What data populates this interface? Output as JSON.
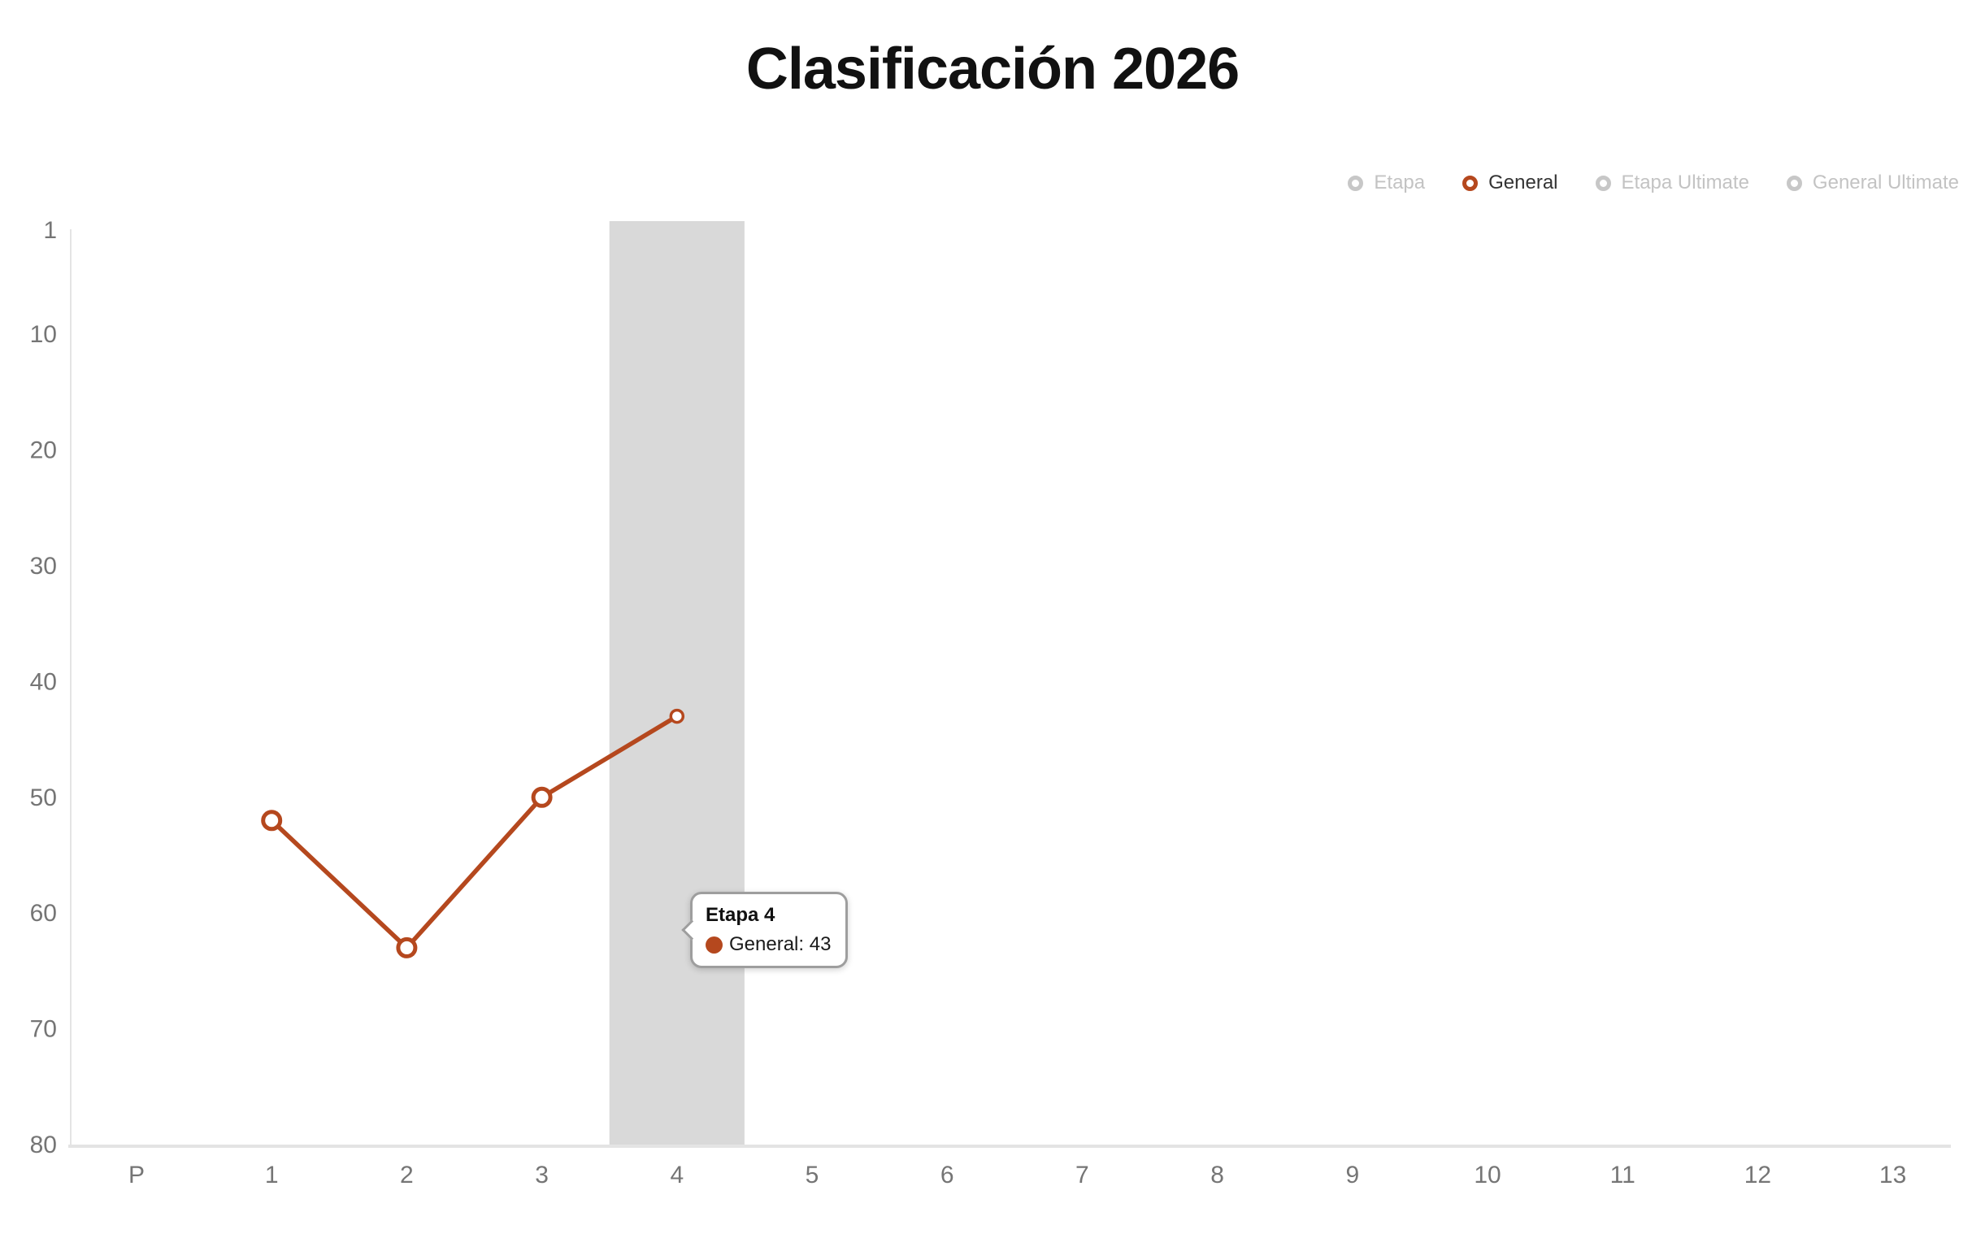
{
  "chart": {
    "title": "Clasificación 2026"
  },
  "legend": {
    "items": [
      {
        "label": "Etapa",
        "active": false
      },
      {
        "label": "General",
        "active": true
      },
      {
        "label": "Etapa Ultimate",
        "active": false
      },
      {
        "label": "General Ultimate",
        "active": false
      }
    ]
  },
  "chart_data": {
    "type": "line",
    "title": "Clasificación 2026",
    "categories": [
      "P",
      "1",
      "2",
      "3",
      "4",
      "5",
      "6",
      "7",
      "8",
      "9",
      "10",
      "11",
      "12",
      "13"
    ],
    "series": [
      {
        "name": "Etapa",
        "visible": false,
        "points": []
      },
      {
        "name": "General",
        "visible": true,
        "points": [
          {
            "x": "1",
            "y": 52
          },
          {
            "x": "2",
            "y": 63
          },
          {
            "x": "3",
            "y": 50
          },
          {
            "x": "4",
            "y": 43
          }
        ]
      },
      {
        "name": "Etapa Ultimate",
        "visible": false,
        "points": []
      },
      {
        "name": "General Ultimate",
        "visible": false,
        "points": []
      }
    ],
    "y_axis": {
      "ticks": [
        1,
        10,
        20,
        30,
        40,
        50,
        60,
        70,
        80
      ],
      "min": 1,
      "max": 80,
      "inverted": true
    },
    "x_axis": {
      "highlight_category": "4"
    },
    "grid": false,
    "legend_position": "top-right"
  },
  "tooltip": {
    "title": "Etapa 4",
    "series_label": "General: 43"
  },
  "colors": {
    "accent": "#b5481e",
    "band": "#d9d9d9",
    "axis_line": "#e4e4e4",
    "axis_text": "#757575",
    "inactive_text": "#c3c3c3",
    "inactive_marker": "#c7c7c7",
    "active_text": "#333333"
  }
}
